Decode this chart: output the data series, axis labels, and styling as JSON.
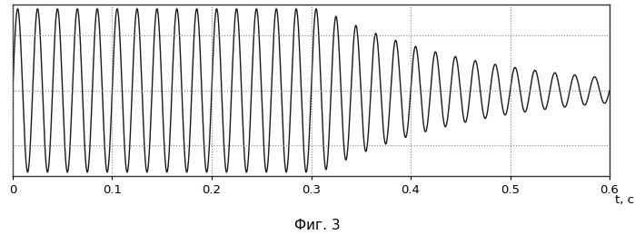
{
  "caption": "Фиг. 3",
  "line_color": "#1a1a1a",
  "line_width": 1.0,
  "background_color": "#ffffff",
  "grid_color": "#777777",
  "xlim": [
    0,
    0.6
  ],
  "ylim": [
    -1.05,
    1.05
  ],
  "xticks": [
    0,
    0.1,
    0.2,
    0.3,
    0.4,
    0.5,
    0.6
  ],
  "yticks": [
    -0.67,
    0.0,
    0.67
  ],
  "freq_initial": 50,
  "amplitude_initial": 1.0,
  "transition_time": 0.31,
  "decay_rate": 6.5,
  "sample_rate": 8000,
  "caption_fontsize": 11
}
